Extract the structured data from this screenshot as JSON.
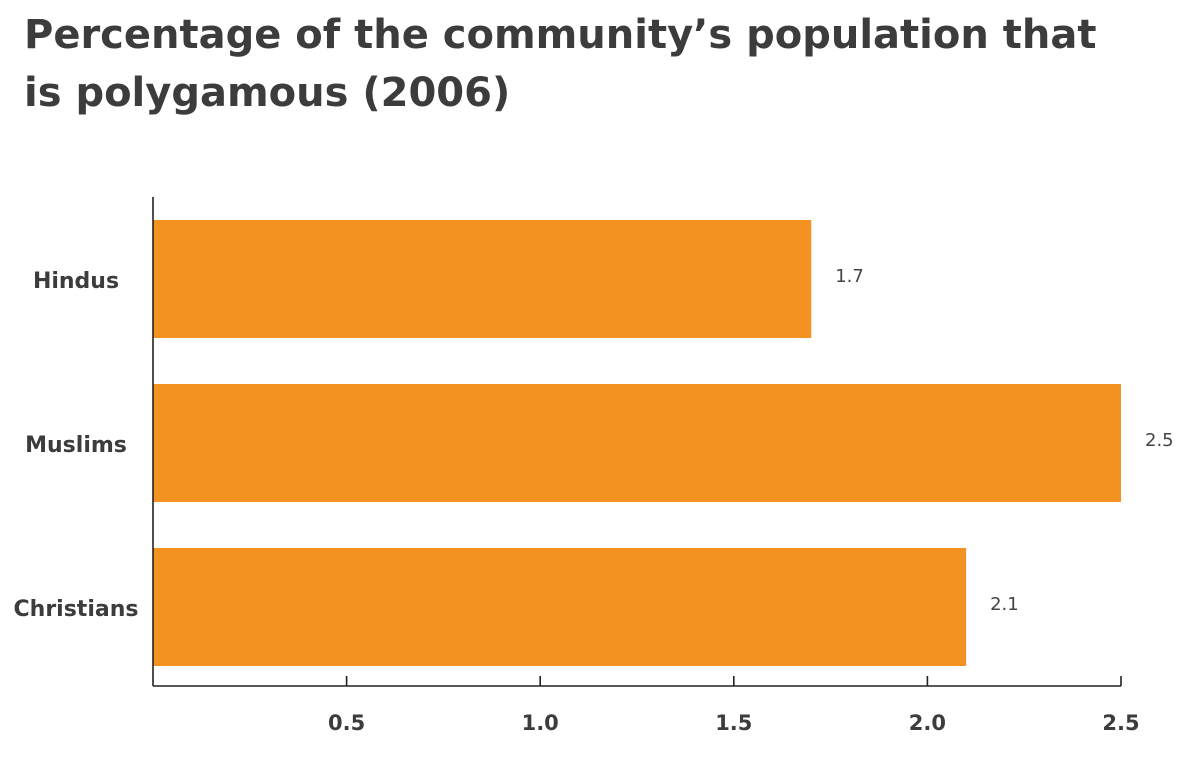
{
  "chart_data": {
    "type": "bar",
    "orientation": "horizontal",
    "title": "Percentage of the community’s population that is polygamous (2006)",
    "xlabel": "",
    "ylabel": "",
    "categories": [
      "Hindus",
      "Muslims",
      "Christians"
    ],
    "values": [
      1.7,
      2.5,
      2.1
    ],
    "value_labels": [
      "1.7",
      "2.5",
      "2.1"
    ],
    "xlim": [
      0,
      2.5
    ],
    "x_ticks": [
      0.5,
      1.0,
      1.5,
      2.0,
      2.5
    ],
    "x_tick_labels": [
      "0.5",
      "1.0",
      "1.5",
      "2.0",
      "2.5"
    ],
    "bar_color": "#f39220",
    "grid": false,
    "legend": "none"
  }
}
